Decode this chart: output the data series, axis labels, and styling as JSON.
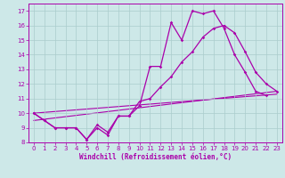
{
  "xlabel": "Windchill (Refroidissement éolien,°C)",
  "background_color": "#cde8e8",
  "line_color": "#aa00aa",
  "grid_color": "#aacccc",
  "xlim": [
    -0.5,
    23.5
  ],
  "ylim": [
    8,
    17.5
  ],
  "xticks": [
    0,
    1,
    2,
    3,
    4,
    5,
    6,
    7,
    8,
    9,
    10,
    11,
    12,
    13,
    14,
    15,
    16,
    17,
    18,
    19,
    20,
    21,
    22,
    23
  ],
  "yticks": [
    8,
    9,
    10,
    11,
    12,
    13,
    14,
    15,
    16,
    17
  ],
  "line1_x": [
    0,
    1,
    2,
    3,
    4,
    5,
    6,
    7,
    8,
    9,
    10,
    11,
    12,
    13,
    14,
    15,
    16,
    17,
    18,
    19,
    20,
    21,
    22
  ],
  "line1_y": [
    10.0,
    9.5,
    9.0,
    9.0,
    9.0,
    8.2,
    9.0,
    8.5,
    9.8,
    9.8,
    10.5,
    13.2,
    13.2,
    16.2,
    15.0,
    17.0,
    16.8,
    17.0,
    15.8,
    14.0,
    12.8,
    11.5,
    11.2
  ],
  "line2_x": [
    0,
    1,
    2,
    3,
    4,
    5,
    6,
    7,
    8,
    9,
    10,
    11,
    12,
    13,
    14,
    15,
    16,
    17,
    18,
    19,
    20,
    21,
    22,
    23
  ],
  "line2_y": [
    10.0,
    9.5,
    9.0,
    9.0,
    9.0,
    8.2,
    9.2,
    8.7,
    9.8,
    9.8,
    10.8,
    11.0,
    11.8,
    12.5,
    13.5,
    14.2,
    15.2,
    15.8,
    16.0,
    15.5,
    14.2,
    12.8,
    12.0,
    11.5
  ],
  "line3_x": [
    0,
    23
  ],
  "line3_y": [
    10.0,
    11.3
  ],
  "line4_x": [
    0,
    23
  ],
  "line4_y": [
    9.5,
    11.5
  ]
}
